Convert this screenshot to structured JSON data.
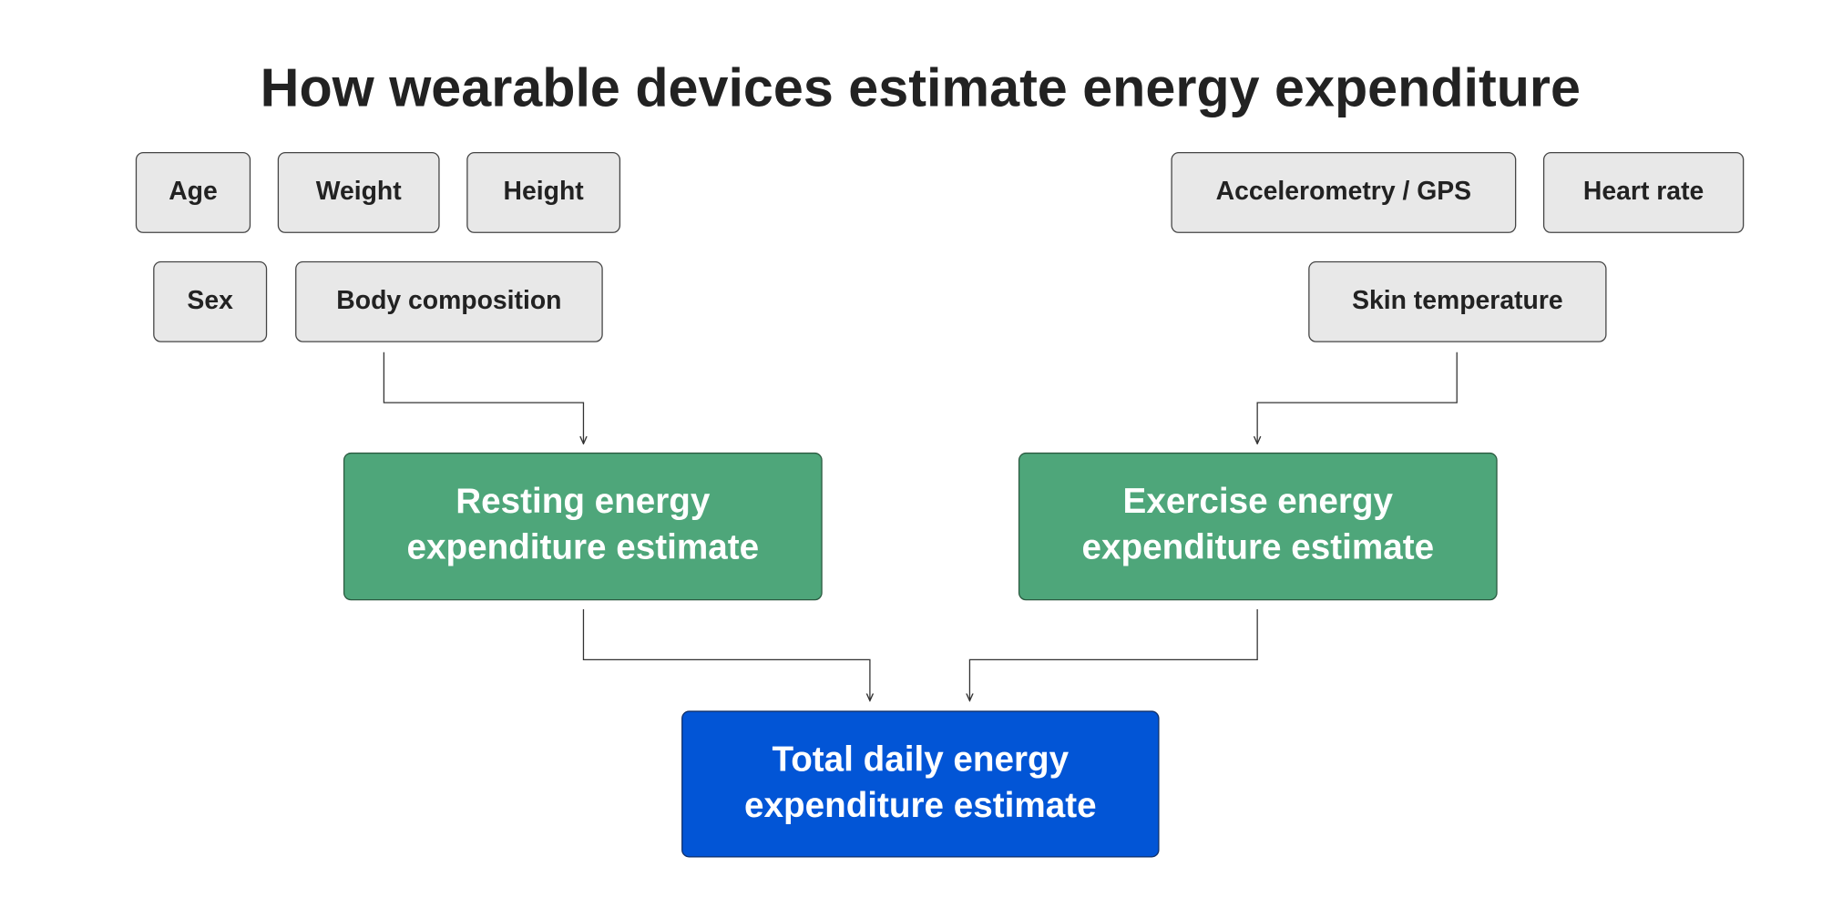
{
  "title": "How wearable devices estimate energy expenditure",
  "inputs": [
    "Age",
    "Weight",
    "Height",
    "Sex",
    "Body composition",
    "Accelerometry / GPS",
    "Heart rate",
    "Skin temperature"
  ],
  "estimates": [
    {
      "lines": [
        "Resting energy",
        "expenditure estimate"
      ]
    },
    {
      "lines": [
        "Exercise energy",
        "expenditure estimate"
      ]
    }
  ],
  "total": {
    "lines": [
      "Total daily energy",
      "expenditure estimate"
    ]
  }
}
